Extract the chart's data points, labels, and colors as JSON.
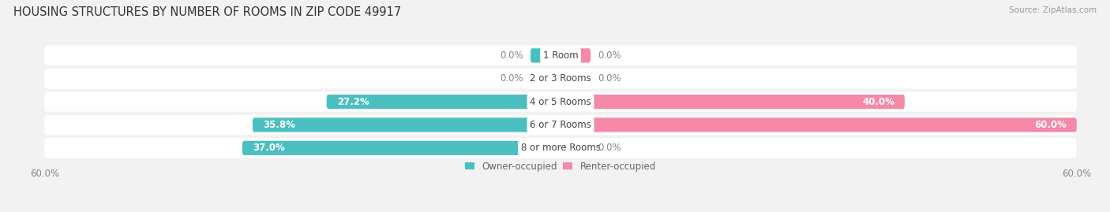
{
  "title": "HOUSING STRUCTURES BY NUMBER OF ROOMS IN ZIP CODE 49917",
  "source": "Source: ZipAtlas.com",
  "categories": [
    "1 Room",
    "2 or 3 Rooms",
    "4 or 5 Rooms",
    "6 or 7 Rooms",
    "8 or more Rooms"
  ],
  "owner_values": [
    0.0,
    0.0,
    27.2,
    35.8,
    37.0
  ],
  "renter_values": [
    0.0,
    0.0,
    40.0,
    60.0,
    0.0
  ],
  "owner_color": "#4BBFBF",
  "renter_color": "#F589A8",
  "axis_max": 60.0,
  "bg_color": "#f2f2f2",
  "bar_bg_color": "#e2e2e2",
  "bar_height": 0.62,
  "row_bg_color": "#e8e8e8",
  "title_fontsize": 10.5,
  "label_fontsize": 8.5,
  "tick_fontsize": 8.5,
  "stub_size": 3.5
}
